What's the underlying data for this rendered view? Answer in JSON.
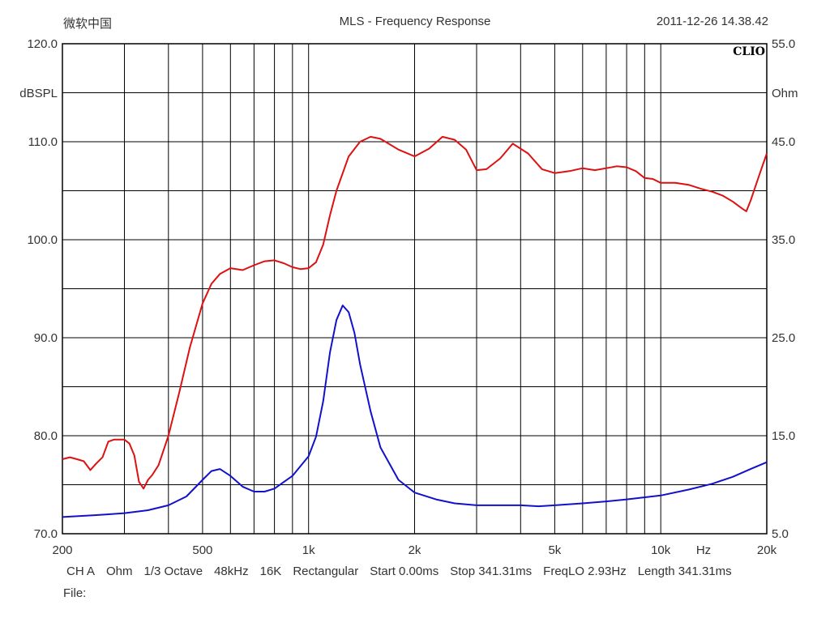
{
  "header": {
    "left": "微软中国",
    "center": "MLS - Frequency Response",
    "right": "2011-12-26 14.38.42"
  },
  "brand": "CLIO",
  "footer": {
    "items": [
      "CH A",
      "Ohm",
      "1/3 Octave",
      "48kHz",
      "16K",
      "Rectangular",
      "Start 0.00ms",
      "Stop 341.31ms",
      "FreqLO 2.93Hz",
      "Length 341.31ms"
    ],
    "file_label": "File:"
  },
  "colors": {
    "spl": "#dd1111",
    "impedance": "#1111cc",
    "grid": "#000000"
  },
  "chart_data": {
    "type": "line",
    "title": "MLS - Frequency Response",
    "xscale": "log",
    "xlim": [
      200,
      20000
    ],
    "x_ticks": [
      {
        "value": 200,
        "label": "200"
      },
      {
        "value": 500,
        "label": "500"
      },
      {
        "value": 1000,
        "label": "1k"
      },
      {
        "value": 2000,
        "label": "2k"
      },
      {
        "value": 5000,
        "label": "5k"
      },
      {
        "value": 10000,
        "label": "10k"
      },
      {
        "value": 20000,
        "label": "20k"
      }
    ],
    "x_unit_label": "Hz",
    "y_left": {
      "label": "dBSPL",
      "range": [
        70,
        120
      ],
      "ticks": [
        "70.0",
        "80.0",
        "90.0",
        "100.0",
        "110.0",
        "120.0"
      ]
    },
    "y_right": {
      "label": "Ohm",
      "range": [
        5,
        55
      ],
      "ticks": [
        "5.0",
        "15.0",
        "25.0",
        "35.0",
        "45.0",
        "55.0"
      ]
    },
    "grid": true,
    "series": [
      {
        "axis": "left",
        "color": "#dd1111",
        "x": [
          200,
          210,
          220,
          230,
          240,
          250,
          260,
          270,
          280,
          300,
          310,
          320,
          330,
          340,
          350,
          360,
          375,
          400,
          430,
          460,
          500,
          530,
          560,
          600,
          650,
          700,
          750,
          800,
          850,
          900,
          950,
          1000,
          1050,
          1100,
          1150,
          1200,
          1300,
          1400,
          1500,
          1600,
          1800,
          2000,
          2200,
          2400,
          2600,
          2800,
          3000,
          3200,
          3500,
          3800,
          4200,
          4600,
          5000,
          5500,
          6000,
          6500,
          7000,
          7500,
          8000,
          8500,
          9000,
          9500,
          10000,
          11000,
          12000,
          13000,
          14000,
          15000,
          16000,
          17000,
          17500,
          18000,
          19000,
          20000
        ],
        "values": [
          77.6,
          77.8,
          77.6,
          77.4,
          76.5,
          77.2,
          77.8,
          79.4,
          79.6,
          79.6,
          79.2,
          78.0,
          75.3,
          74.6,
          75.5,
          76.0,
          77.0,
          80.0,
          84.5,
          89.0,
          93.5,
          95.5,
          96.5,
          97.1,
          96.9,
          97.4,
          97.8,
          97.9,
          97.6,
          97.2,
          97.0,
          97.1,
          97.7,
          99.5,
          102.5,
          105.0,
          108.5,
          110.0,
          110.5,
          110.3,
          109.2,
          108.5,
          109.3,
          110.5,
          110.2,
          109.2,
          107.1,
          107.2,
          108.3,
          109.8,
          108.8,
          107.2,
          106.8,
          107.0,
          107.3,
          107.1,
          107.3,
          107.5,
          107.4,
          107.0,
          106.3,
          106.2,
          105.8,
          105.8,
          105.6,
          105.2,
          104.9,
          104.5,
          103.9,
          103.2,
          102.9,
          104.0,
          106.5,
          108.8
        ]
      },
      {
        "axis": "right",
        "color": "#1111cc",
        "x": [
          200,
          250,
          300,
          350,
          400,
          450,
          500,
          530,
          560,
          600,
          650,
          700,
          750,
          800,
          900,
          1000,
          1050,
          1100,
          1150,
          1200,
          1250,
          1300,
          1350,
          1400,
          1500,
          1600,
          1800,
          2000,
          2300,
          2600,
          3000,
          3500,
          4000,
          4500,
          5000,
          6000,
          7000,
          8000,
          10000,
          12000,
          14000,
          16000,
          18000,
          20000
        ],
        "values": [
          6.7,
          6.9,
          7.1,
          7.4,
          7.9,
          8.8,
          10.5,
          11.4,
          11.6,
          10.9,
          9.8,
          9.3,
          9.3,
          9.6,
          10.9,
          12.9,
          14.9,
          18.5,
          23.5,
          26.8,
          28.3,
          27.6,
          25.5,
          22.3,
          17.5,
          13.8,
          10.5,
          9.2,
          8.5,
          8.1,
          7.9,
          7.9,
          7.9,
          7.8,
          7.9,
          8.1,
          8.3,
          8.5,
          8.9,
          9.5,
          10.1,
          10.8,
          11.6,
          12.3
        ]
      }
    ]
  }
}
